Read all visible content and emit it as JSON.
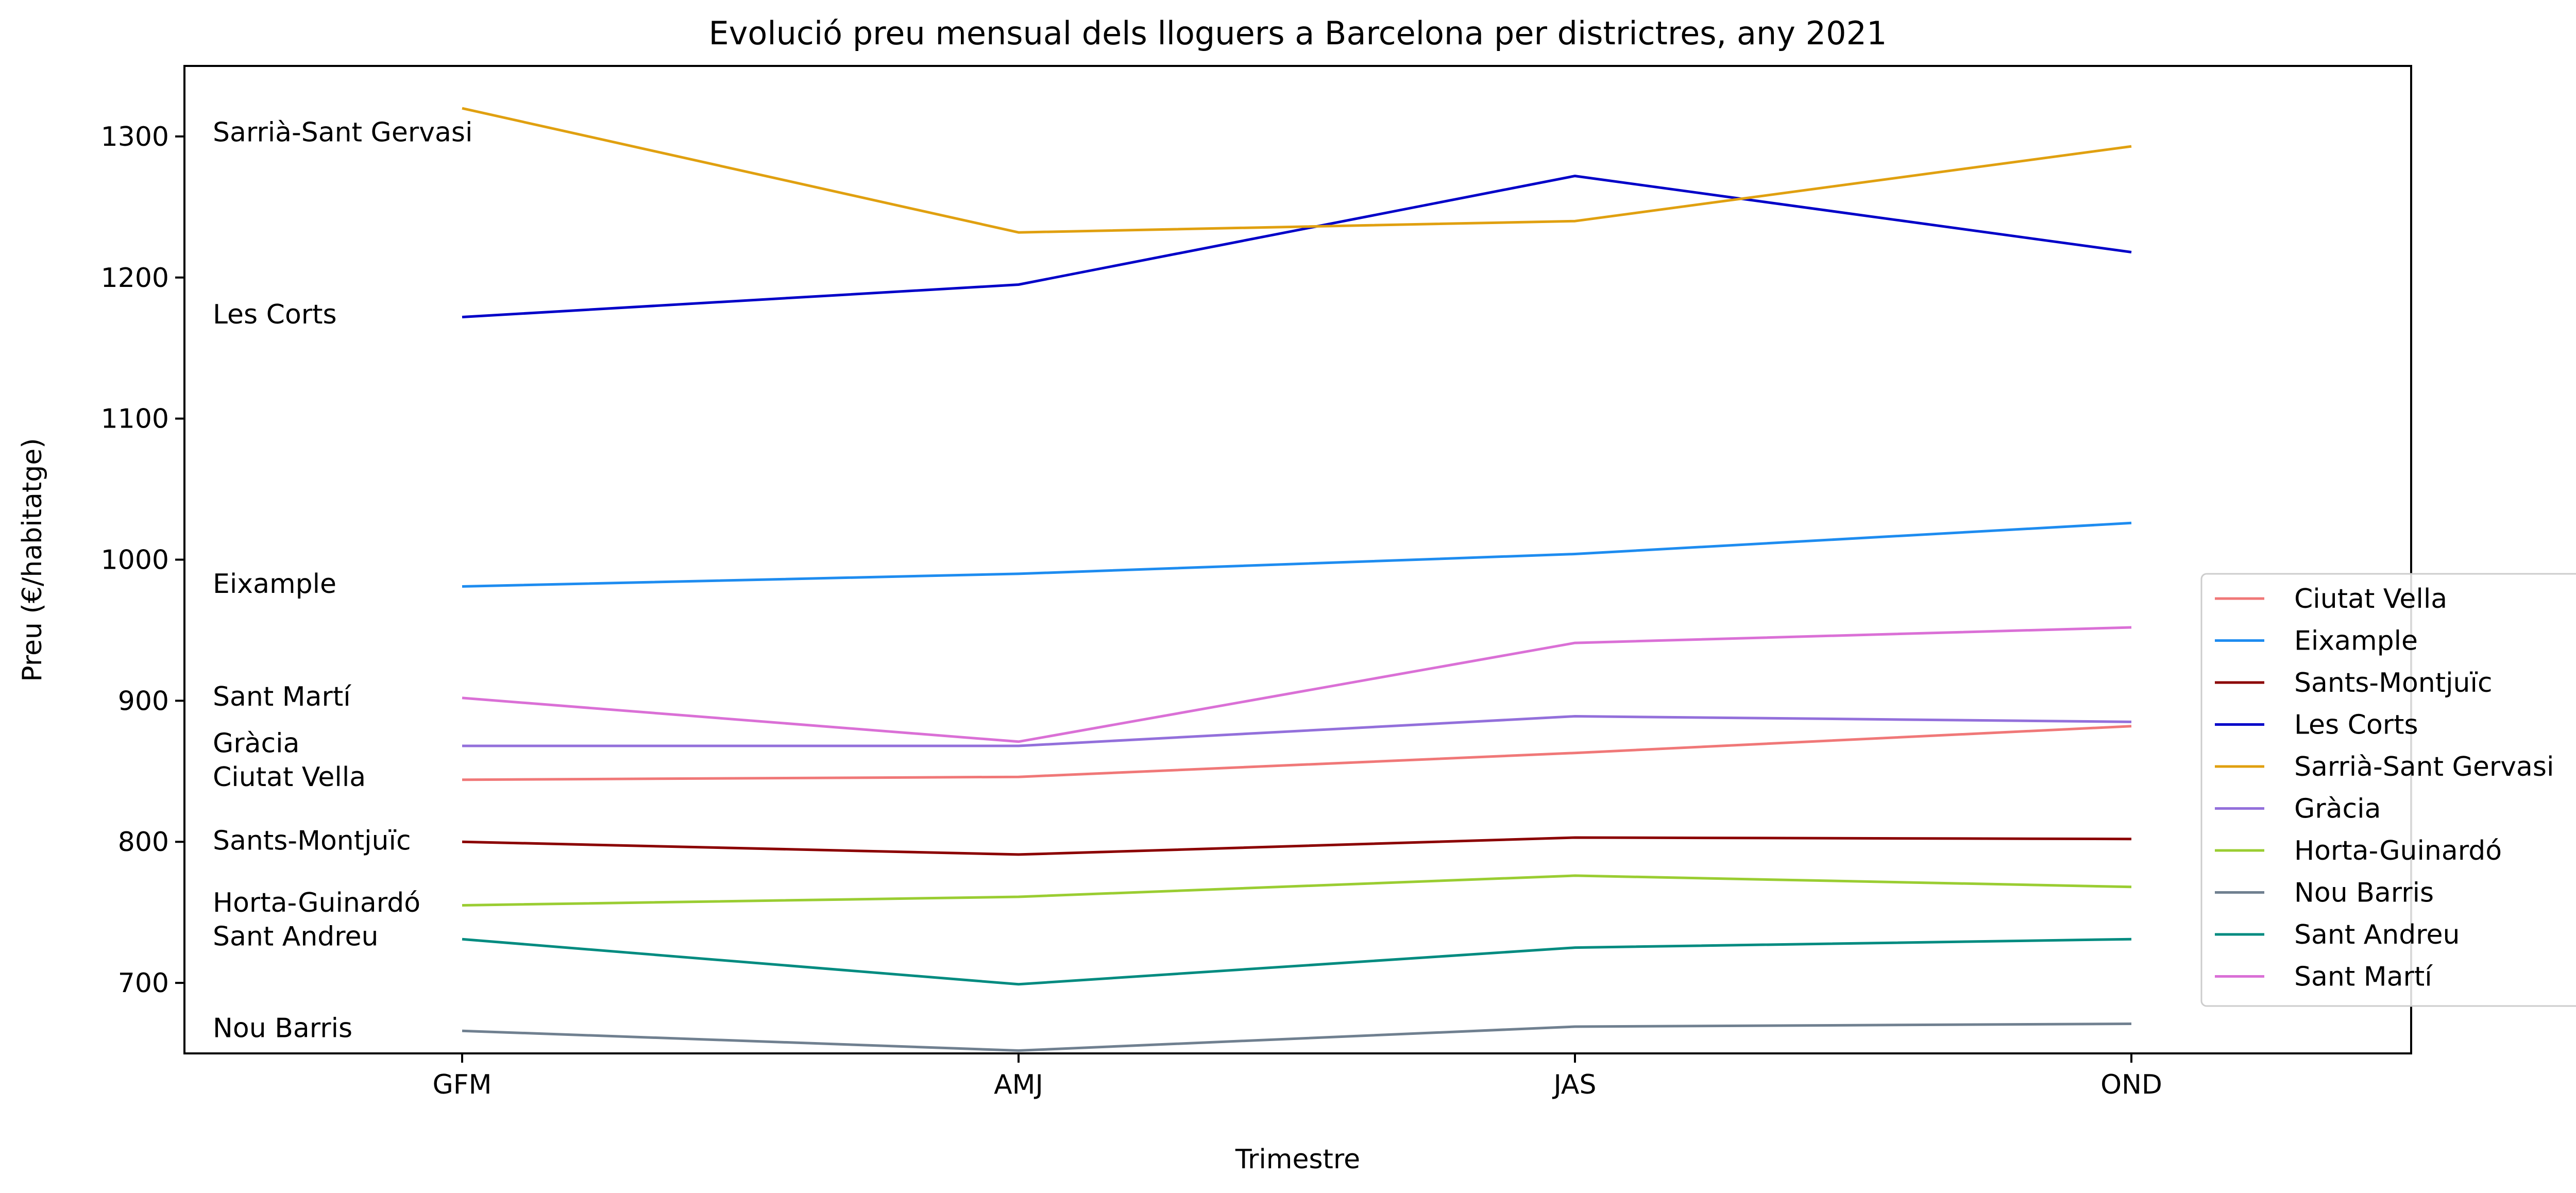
{
  "chart_data": {
    "type": "line",
    "title": "Evolució preu mensual dels lloguers a Barcelona per districtres, any 2021",
    "xlabel": "Trimestre",
    "ylabel": "Preu (€/habitatge)",
    "categories": [
      "GFM",
      "AMJ",
      "JAS",
      "OND"
    ],
    "ylim": [
      650,
      1350
    ],
    "yticks": [
      700,
      800,
      900,
      1000,
      1100,
      1200,
      1300
    ],
    "grid": false,
    "legend_position": "right",
    "series": [
      {
        "name": "Ciutat Vella",
        "color": "#f07878",
        "values": [
          844,
          846,
          863,
          882
        ]
      },
      {
        "name": "Eixample",
        "color": "#1e8cf0",
        "values": [
          981,
          990,
          1004,
          1026
        ]
      },
      {
        "name": "Sants-Montjuïc",
        "color": "#8b0000",
        "values": [
          800,
          791,
          803,
          802
        ]
      },
      {
        "name": "Les Corts",
        "color": "#0000c8",
        "values": [
          1172,
          1195,
          1272,
          1218
        ]
      },
      {
        "name": "Sarrià-Sant Gervasi",
        "color": "#e0a010",
        "values": [
          1320,
          1232,
          1240,
          1293
        ]
      },
      {
        "name": "Gràcia",
        "color": "#9370db",
        "values": [
          868,
          868,
          889,
          885
        ]
      },
      {
        "name": "Horta-Guinardó",
        "color": "#9acd32",
        "values": [
          755,
          761,
          776,
          768
        ]
      },
      {
        "name": "Nou Barris",
        "color": "#708090",
        "values": [
          666,
          652,
          669,
          671
        ]
      },
      {
        "name": "Sant Andreu",
        "color": "#008b80",
        "values": [
          731,
          699,
          725,
          731
        ]
      },
      {
        "name": "Sant Martí",
        "color": "#da70d6",
        "values": [
          902,
          871,
          941,
          952
        ]
      }
    ],
    "annotations": [
      {
        "text": "Sarrià-Sant Gervasi",
        "y": 1303
      },
      {
        "text": "Les Corts",
        "y": 1174
      },
      {
        "text": "Eixample",
        "y": 983
      },
      {
        "text": "Sant Martí",
        "y": 903
      },
      {
        "text": "Gràcia",
        "y": 870
      },
      {
        "text": "Ciutat Vella",
        "y": 846
      },
      {
        "text": "Sants-Montjuïc",
        "y": 801
      },
      {
        "text": "Horta-Guinardó",
        "y": 757
      },
      {
        "text": "Sant Andreu",
        "y": 733
      },
      {
        "text": "Nou Barris",
        "y": 668
      }
    ]
  }
}
